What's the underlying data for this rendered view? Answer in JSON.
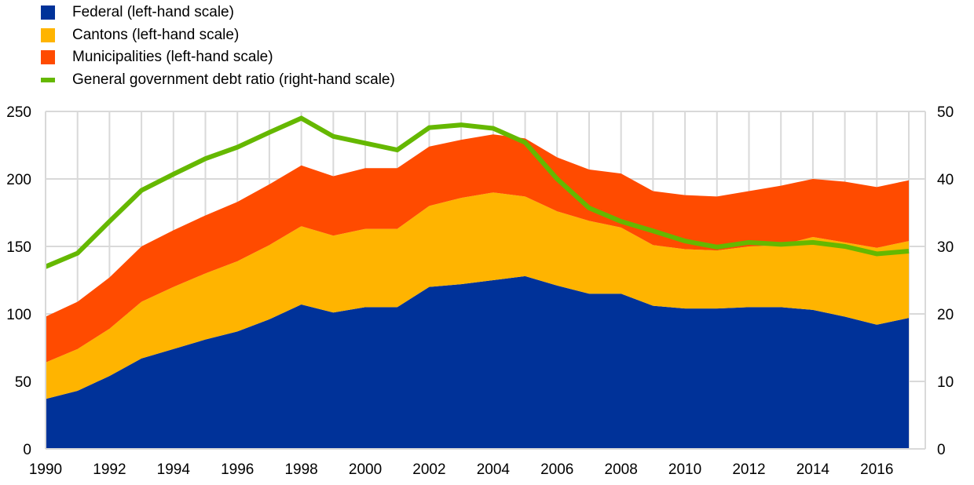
{
  "chart_data": {
    "type": "area",
    "title": "",
    "xlabel": "",
    "ylabel": "",
    "y2label": "",
    "x": [
      1990,
      1991,
      1992,
      1993,
      1994,
      1995,
      1996,
      1997,
      1998,
      1999,
      2000,
      2001,
      2002,
      2003,
      2004,
      2005,
      2006,
      2007,
      2008,
      2009,
      2010,
      2011,
      2012,
      2013,
      2014,
      2015,
      2016,
      2017
    ],
    "x_tick_labels": [
      "1990",
      "1992",
      "1994",
      "1996",
      "1998",
      "2000",
      "2002",
      "2004",
      "2006",
      "2008",
      "2010",
      "2012",
      "2014",
      "2016"
    ],
    "ylim": [
      0,
      250
    ],
    "y_ticks": [
      "0",
      "50",
      "100",
      "150",
      "200",
      "250"
    ],
    "y2lim": [
      0,
      50
    ],
    "y2_ticks": [
      "0",
      "10",
      "20",
      "30",
      "40",
      "50"
    ],
    "grid": true,
    "legend_position": "top-left",
    "series": [
      {
        "name": "Federal (left-hand scale)",
        "kind": "stacked-area",
        "axis": "left",
        "color": "#003299",
        "values": [
          37,
          43,
          54,
          67,
          74,
          81,
          87,
          96,
          107,
          101,
          105,
          105,
          120,
          122,
          125,
          128,
          121,
          115,
          115,
          106,
          104,
          104,
          105,
          105,
          103,
          98,
          92,
          97
        ]
      },
      {
        "name": "Cantons (left-hand scale)",
        "kind": "stacked-area",
        "axis": "left",
        "color": "#FFB400",
        "values": [
          27,
          31,
          35,
          42,
          46,
          49,
          52,
          55,
          58,
          57,
          58,
          58,
          60,
          64,
          65,
          59,
          55,
          54,
          49,
          45,
          44,
          43,
          45,
          46,
          54,
          55,
          57,
          57
        ]
      },
      {
        "name": "Municipalities (left-hand scale)",
        "kind": "stacked-area",
        "axis": "left",
        "color": "#FF4B00",
        "values": [
          34,
          35,
          38,
          41,
          42,
          43,
          44,
          45,
          45,
          44,
          45,
          45,
          44,
          43,
          43,
          43,
          40,
          38,
          40,
          40,
          40,
          40,
          41,
          44,
          43,
          45,
          45,
          45
        ]
      },
      {
        "name": "General government debt ratio (right-hand scale)",
        "kind": "line",
        "axis": "right",
        "color": "#65B800",
        "values": [
          27.0,
          29.0,
          33.7,
          38.3,
          40.7,
          43.0,
          44.7,
          46.9,
          49.0,
          46.3,
          45.3,
          44.3,
          47.6,
          48.0,
          47.5,
          45.4,
          40.0,
          35.7,
          33.7,
          32.3,
          30.8,
          29.9,
          30.6,
          30.3,
          30.6,
          30.0,
          28.9,
          29.3
        ]
      }
    ]
  }
}
